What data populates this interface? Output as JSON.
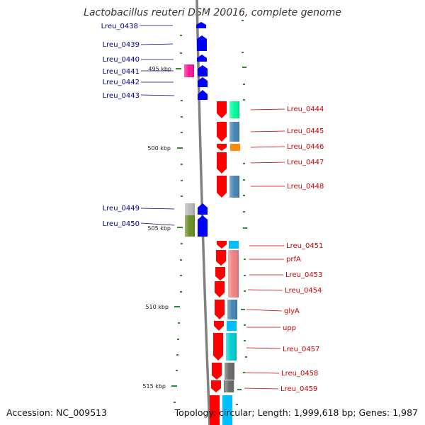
{
  "title": "Lactobacillus reuteri DSM 20016, complete genome",
  "accession": "Accession: NC_009513",
  "summary": "Topology: circular; Length: 1,999,618 bp; Genes: 1,987",
  "ticks": [
    {
      "label": "495 kbp",
      "kbp": 495
    },
    {
      "label": "500 kbp",
      "kbp": 500
    },
    {
      "label": "505 kbp",
      "kbp": 505
    },
    {
      "label": "510 kbp",
      "kbp": 510
    },
    {
      "label": "515 kbp",
      "kbp": 515
    }
  ],
  "left_labels": [
    "Lreu_0438",
    "Lreu_0439",
    "Lreu_0440",
    "Lreu_0441",
    "Lreu_0442",
    "Lreu_0443",
    "Lreu_0449",
    "Lreu_0450"
  ],
  "right_labels": [
    "Lreu_0444",
    "Lreu_0445",
    "Lreu_0446",
    "Lreu_0447",
    "Lreu_0448",
    "Lreu_0451",
    "prfA",
    "Lreu_0453",
    "Lreu_0454",
    "glyA",
    "upp",
    "Lreu_0457",
    "Lreu_0458",
    "Lreu_0459"
  ],
  "colors": {
    "reverse_strand_gene": "#0000ff",
    "forward_strand_gene": "#ff0000",
    "left_label": "#00008b",
    "right_label": "#cc0000",
    "tick": "#2e8b2e",
    "backbone": "#808080"
  }
}
